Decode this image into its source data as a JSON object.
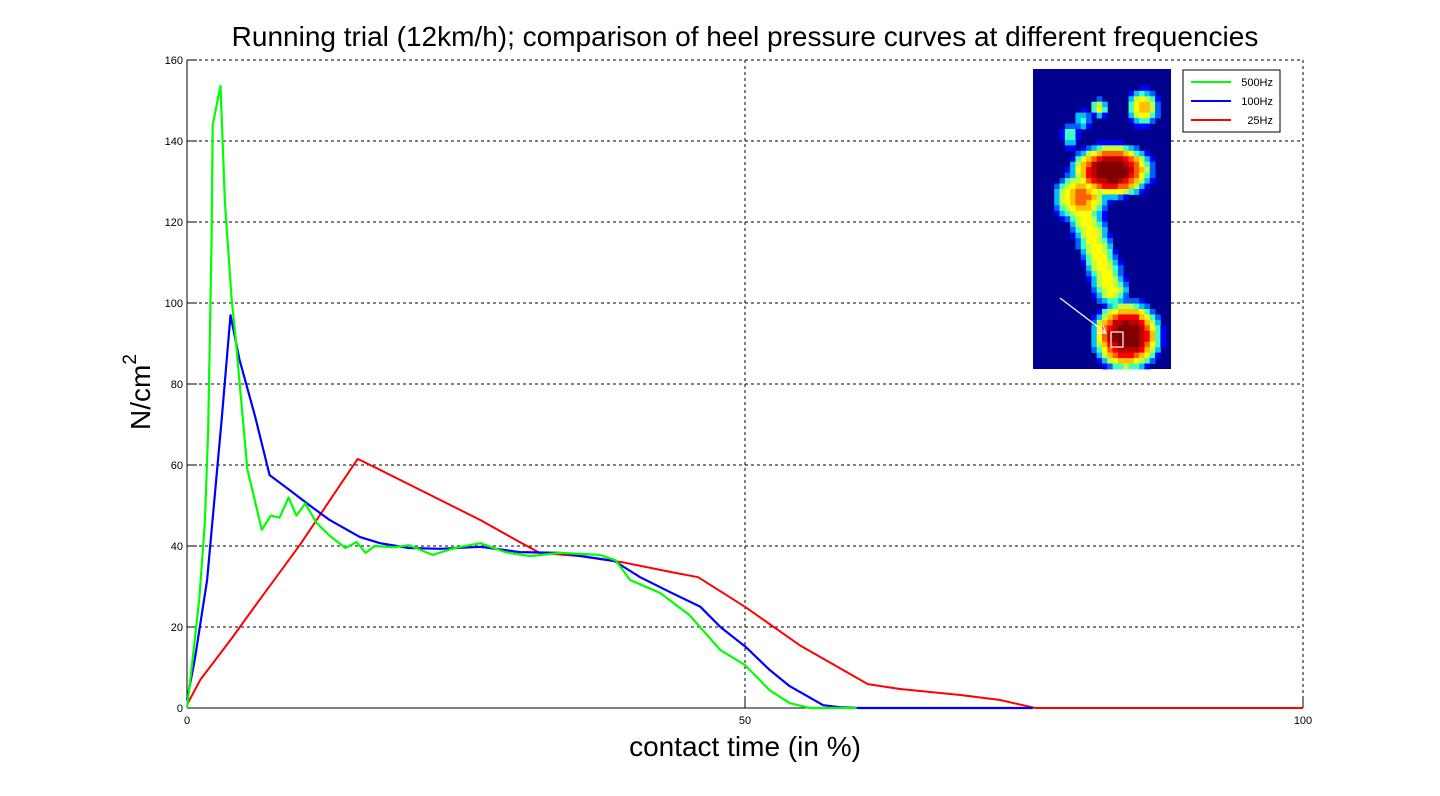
{
  "chart_data": {
    "type": "line",
    "title": "Running trial (12km/h); comparison of heel pressure curves at different frequencies",
    "xlabel": "contact time (in %)",
    "ylabel": "N/cm",
    "ylabel_superscript": "2",
    "xlim": [
      0,
      100
    ],
    "ylim": [
      0,
      160
    ],
    "xticks": [
      0,
      50,
      100
    ],
    "xtick_labels": [
      "0",
      "50",
      "100"
    ],
    "yticks": [
      0,
      20,
      40,
      60,
      80,
      100,
      120,
      140,
      160
    ],
    "ytick_labels": [
      "0",
      "20",
      "40",
      "60",
      "80",
      "100",
      "120",
      "140",
      "160"
    ],
    "grid": true,
    "legend_position": "top-right",
    "inset_image": "foot-pressure-heatmap",
    "series": [
      {
        "name": "500Hz",
        "color": "#00ff00",
        "x": [
          0,
          0.5,
          1.1,
          1.6,
          1.9,
          2.2,
          2.3,
          3.0,
          3.4,
          4.0,
          4.3,
          5.4,
          6.7,
          7.5,
          8.3,
          9.1,
          9.8,
          10.6,
          11.6,
          12.8,
          14.2,
          15.2,
          16.0,
          16.8,
          18.6,
          19.9,
          22.0,
          24.0,
          26.3,
          28.5,
          30.7,
          33.4,
          37.0,
          38.4,
          39.7,
          42.4,
          45.0,
          47.8,
          50.0,
          52.2,
          54.0,
          55.8,
          60.0
        ],
        "y": [
          0,
          12,
          27,
          46,
          69,
          116,
          144,
          153.6,
          125,
          101,
          93,
          59,
          44,
          47.5,
          47,
          52,
          47.5,
          50.5,
          45.7,
          42.5,
          39.5,
          41,
          38.3,
          40,
          39.7,
          40.2,
          37.8,
          39.5,
          40.7,
          38.5,
          37.5,
          38.3,
          37.8,
          36.5,
          31.6,
          28.4,
          23,
          14.3,
          10.6,
          4.4,
          1.2,
          0,
          0
        ]
      },
      {
        "name": "100Hz",
        "color": "#0000ff",
        "x": [
          0,
          0.7,
          1.8,
          3.1,
          3.9,
          4.7,
          6.1,
          7.4,
          9.2,
          11.0,
          12.8,
          15.5,
          17.3,
          19.9,
          22.7,
          26.3,
          29.8,
          33.4,
          38.3,
          40.6,
          43.3,
          46.0,
          47.8,
          50.1,
          52.2,
          54.0,
          57.0,
          58.5,
          60.3,
          75.8
        ],
        "y": [
          2,
          12,
          31.6,
          71,
          97,
          86,
          72,
          57.5,
          53.8,
          50,
          46.4,
          42.2,
          40.7,
          39.5,
          39.3,
          39.8,
          38.5,
          38.3,
          36.3,
          32.3,
          28.6,
          25,
          20,
          15,
          9.4,
          5.4,
          0.7,
          0.2,
          0,
          0
        ]
      },
      {
        "name": "25Hz",
        "color": "#ff0000",
        "x": [
          0,
          1.2,
          3.9,
          6.5,
          10.1,
          13.7,
          15.3,
          17.3,
          21.8,
          26.3,
          29.8,
          31.6,
          35.2,
          39.0,
          43.3,
          45.8,
          50.0,
          54.9,
          61.0,
          63.9,
          69.3,
          72.8,
          76.0,
          100
        ],
        "y": [
          0.8,
          7,
          16.8,
          26.7,
          40.2,
          55,
          61.5,
          58.8,
          52.6,
          46.4,
          41,
          38.3,
          37.5,
          36,
          33.6,
          32.3,
          25,
          15.5,
          5.9,
          4.7,
          3.2,
          2,
          0,
          0
        ]
      }
    ]
  }
}
